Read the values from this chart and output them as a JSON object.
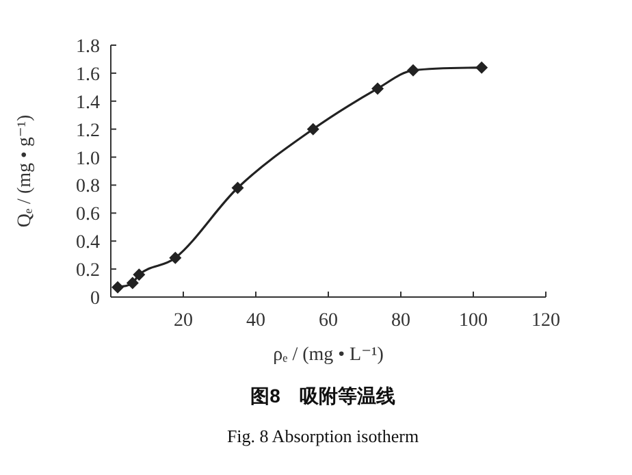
{
  "chart_data": {
    "type": "line",
    "title": "图8　吸附等温线",
    "subtitle": "Fig. 8 Absorption isotherm",
    "xlabel": "ρₑ / (mg • L⁻¹)",
    "ylabel": "Qₑ / (mg • g⁻¹)",
    "x": [
      1.9,
      6.0,
      7.8,
      17.8,
      35.0,
      55.8,
      73.6,
      83.4,
      102.3
    ],
    "series": [
      {
        "color": "#222222",
        "values": [
          0.07,
          0.1,
          0.16,
          0.28,
          0.78,
          1.2,
          1.49,
          1.62,
          1.64
        ]
      }
    ],
    "xlim": [
      0,
      120
    ],
    "xticks": [
      {
        "value": 0,
        "label": null
      },
      20,
      40,
      60,
      80,
      100,
      120
    ],
    "ylim": [
      0,
      1.8
    ],
    "yticks": [
      0,
      0.2,
      0.4,
      0.6,
      0.8,
      {
        "value": 1.0,
        "label": "1.0"
      },
      1.2,
      1.4,
      1.6,
      1.8
    ],
    "marker": "diamond",
    "line_style": "solid",
    "grid": false
  }
}
